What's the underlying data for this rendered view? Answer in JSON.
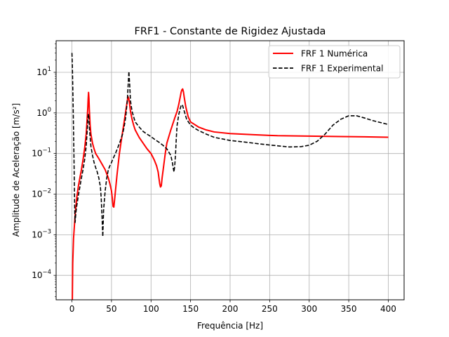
{
  "chart_data": {
    "type": "line",
    "title": "FRF1 - Constante de Rigidez Ajustada",
    "xlabel": "Frequência [Hz]",
    "ylabel": "Amplitude de Aceleração [m/s²]",
    "xlim": [
      -20,
      420
    ],
    "ylim": [
      2.5e-05,
      60
    ],
    "yscale": "log",
    "grid": true,
    "legend_position": "top-right",
    "x_ticks": [
      0,
      50,
      100,
      150,
      200,
      250,
      300,
      350,
      400
    ],
    "y_ticks": [
      {
        "value": 0.0001,
        "base": "10",
        "exp": "−4"
      },
      {
        "value": 0.001,
        "base": "10",
        "exp": "−3"
      },
      {
        "value": 0.01,
        "base": "10",
        "exp": "−2"
      },
      {
        "value": 0.1,
        "base": "10",
        "exp": "−1"
      },
      {
        "value": 1,
        "base": "10",
        "exp": "0"
      },
      {
        "value": 10,
        "base": "10",
        "exp": "1"
      }
    ],
    "series": [
      {
        "name": "FRF 1 Numérica",
        "color": "#ff0000",
        "style": "solid",
        "x": [
          0.5,
          1,
          2,
          4,
          6,
          8,
          10,
          12,
          14,
          16,
          18,
          19,
          20,
          20.5,
          21,
          21.5,
          22,
          23,
          24,
          26,
          28,
          30,
          34,
          38,
          42,
          46,
          48,
          50,
          51,
          52,
          53,
          54,
          55,
          57,
          60,
          63,
          66,
          68,
          70,
          71,
          72,
          73,
          74,
          76,
          78,
          80,
          85,
          90,
          95,
          100,
          104,
          107,
          109,
          110,
          111,
          112,
          113,
          114,
          116,
          118,
          120,
          125,
          130,
          133,
          135,
          137,
          138,
          139,
          140,
          141,
          142,
          144,
          147,
          150,
          160,
          170,
          180,
          200,
          230,
          260,
          300,
          340,
          370,
          400
        ],
        "y": [
          2.5e-05,
          0.0002,
          0.0008,
          0.003,
          0.008,
          0.015,
          0.025,
          0.04,
          0.07,
          0.13,
          0.3,
          0.6,
          1.3,
          2.2,
          3.2,
          2.3,
          1.2,
          0.5,
          0.3,
          0.18,
          0.13,
          0.1,
          0.075,
          0.055,
          0.04,
          0.025,
          0.018,
          0.012,
          0.008,
          0.005,
          0.0048,
          0.0075,
          0.012,
          0.03,
          0.1,
          0.25,
          0.6,
          1.1,
          2.0,
          2.5,
          2.2,
          1.6,
          1.1,
          0.7,
          0.5,
          0.38,
          0.25,
          0.18,
          0.13,
          0.1,
          0.07,
          0.05,
          0.035,
          0.025,
          0.018,
          0.015,
          0.016,
          0.025,
          0.05,
          0.1,
          0.18,
          0.38,
          0.75,
          1.1,
          1.6,
          2.5,
          3.2,
          3.7,
          3.9,
          3.3,
          2.4,
          1.4,
          0.8,
          0.6,
          0.45,
          0.38,
          0.34,
          0.31,
          0.29,
          0.275,
          0.268,
          0.262,
          0.258,
          0.252
        ]
      },
      {
        "name": "FRF 1 Experimental",
        "color": "#000000",
        "style": "dashed",
        "x": [
          0,
          0.5,
          1,
          1.5,
          2,
          2.5,
          3,
          3.5,
          4,
          5,
          6,
          8,
          10,
          12,
          14,
          16,
          18,
          19,
          20,
          20.5,
          21,
          21.5,
          22,
          23,
          24,
          26,
          28,
          30,
          32,
          34,
          36,
          37,
          38,
          39,
          40,
          42,
          44,
          46,
          48,
          50,
          52,
          55,
          58,
          61,
          64,
          66,
          68,
          70,
          71,
          72,
          73,
          74,
          76,
          78,
          80,
          85,
          90,
          95,
          100,
          105,
          110,
          115,
          120,
          125,
          127,
          128,
          129,
          130,
          131,
          132,
          133,
          135,
          137,
          138,
          139,
          140,
          142,
          145,
          150,
          155,
          160,
          170,
          180,
          200,
          220,
          240,
          260,
          275,
          290,
          300,
          310,
          320,
          330,
          340,
          350,
          360,
          370,
          380,
          390,
          400
        ],
        "y": [
          30,
          15,
          5,
          1.5,
          0.4,
          0.1,
          0.02,
          0.004,
          0.002,
          0.0035,
          0.005,
          0.009,
          0.015,
          0.025,
          0.04,
          0.07,
          0.15,
          0.3,
          0.6,
          0.85,
          0.95,
          0.7,
          0.45,
          0.25,
          0.15,
          0.09,
          0.06,
          0.045,
          0.035,
          0.025,
          0.015,
          0.008,
          0.003,
          0.0009,
          0.004,
          0.012,
          0.025,
          0.04,
          0.05,
          0.06,
          0.075,
          0.1,
          0.14,
          0.2,
          0.3,
          0.45,
          0.8,
          2.0,
          4.5,
          10.5,
          5.0,
          2.0,
          1.1,
          0.8,
          0.6,
          0.45,
          0.35,
          0.3,
          0.26,
          0.22,
          0.19,
          0.16,
          0.13,
          0.09,
          0.06,
          0.045,
          0.035,
          0.05,
          0.1,
          0.25,
          0.5,
          0.9,
          1.3,
          1.5,
          1.6,
          1.5,
          1.1,
          0.7,
          0.5,
          0.42,
          0.37,
          0.3,
          0.25,
          0.21,
          0.19,
          0.17,
          0.155,
          0.145,
          0.148,
          0.16,
          0.2,
          0.3,
          0.5,
          0.7,
          0.85,
          0.85,
          0.75,
          0.65,
          0.58,
          0.52
        ]
      }
    ]
  }
}
